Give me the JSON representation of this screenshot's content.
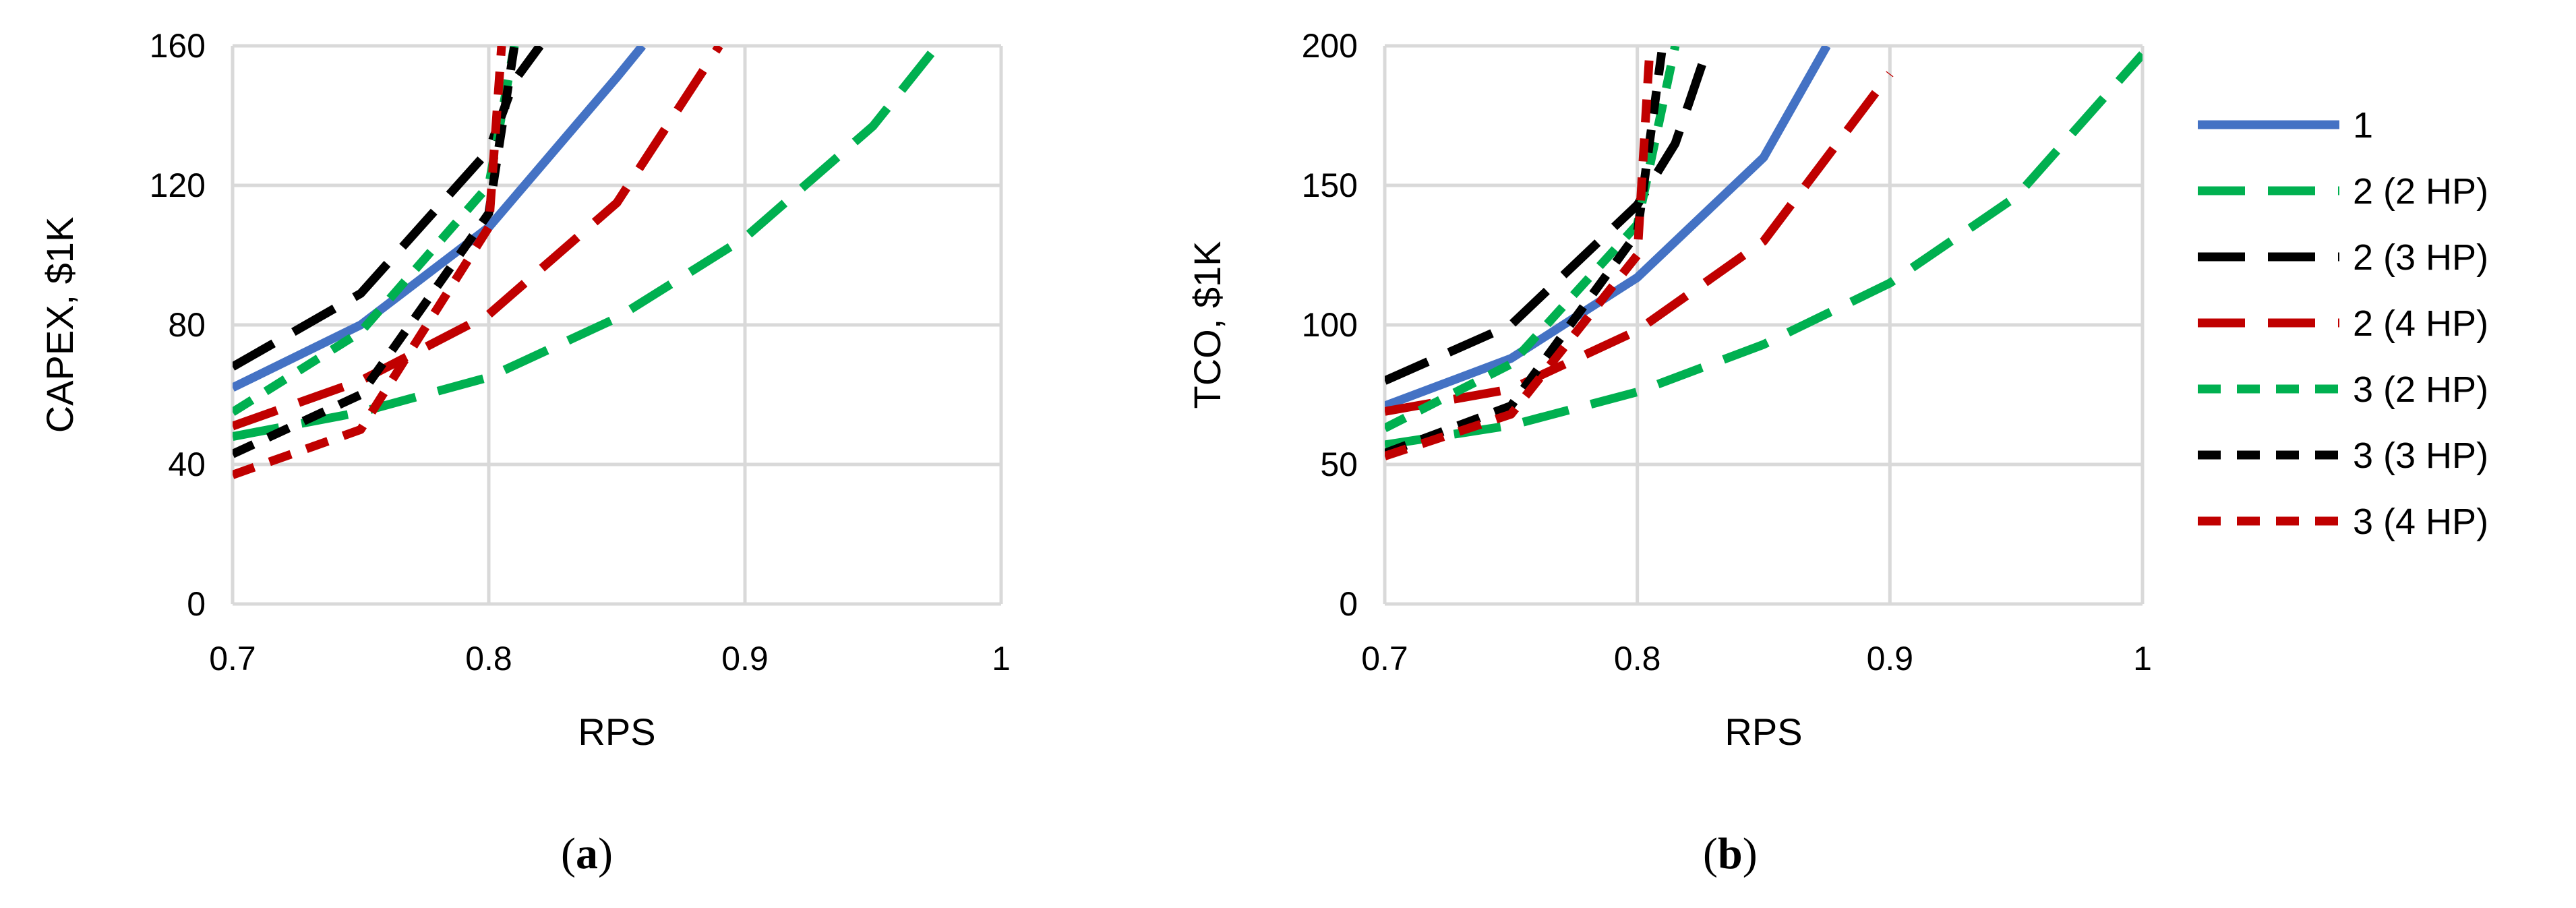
{
  "colors": {
    "blue": "#4472C4",
    "green": "#00B050",
    "black": "#000000",
    "red": "#C00000",
    "grid": "#D9D9D9"
  },
  "legend": {
    "placement": "right",
    "entries": [
      {
        "label": "1",
        "color": "#4472C4",
        "dash": "solid"
      },
      {
        "label": "2 (2 HP)",
        "color": "#00B050",
        "dash": "long-dash"
      },
      {
        "label": "2 (3 HP)",
        "color": "#000000",
        "dash": "long-dash"
      },
      {
        "label": "2 (4 HP)",
        "color": "#C00000",
        "dash": "long-dash"
      },
      {
        "label": "3 (2 HP)",
        "color": "#00B050",
        "dash": "short-dash"
      },
      {
        "label": "3 (3 HP)",
        "color": "#000000",
        "dash": "short-dash"
      },
      {
        "label": "3 (4 HP)",
        "color": "#C00000",
        "dash": "short-dash"
      }
    ]
  },
  "chart_data": [
    {
      "type": "line",
      "panel_label_open": "(",
      "panel_label_letter": "a",
      "panel_label_close": ")",
      "xlabel": "RPS",
      "ylabel": "CAPEX, $1K",
      "xlim": [
        0.7,
        1.0
      ],
      "ylim": [
        0,
        160
      ],
      "xticks": [
        "0.7",
        "0.8",
        "0.9",
        "1"
      ],
      "yticks": [
        "0",
        "40",
        "80",
        "120",
        "160"
      ],
      "grid": true,
      "series": [
        {
          "name": "1",
          "x": [
            0.7,
            0.75,
            0.8,
            0.85,
            0.86
          ],
          "y": [
            62,
            80,
            108,
            151,
            160
          ]
        },
        {
          "name": "2 (2 HP)",
          "x": [
            0.7,
            0.75,
            0.8,
            0.85,
            0.9,
            0.95,
            0.975
          ],
          "y": [
            48,
            55,
            65,
            82,
            105,
            137,
            160
          ]
        },
        {
          "name": "2 (3 HP)",
          "x": [
            0.7,
            0.75,
            0.8,
            0.81,
            0.82
          ],
          "y": [
            68,
            89,
            130,
            150,
            160
          ]
        },
        {
          "name": "2 (4 HP)",
          "x": [
            0.7,
            0.75,
            0.8,
            0.85,
            0.89
          ],
          "y": [
            51,
            64,
            83,
            115,
            160
          ]
        },
        {
          "name": "3 (2 HP)",
          "x": [
            0.7,
            0.75,
            0.8,
            0.81
          ],
          "y": [
            55,
            78,
            120,
            160
          ]
        },
        {
          "name": "3 (3 HP)",
          "x": [
            0.7,
            0.75,
            0.8,
            0.81
          ],
          "y": [
            43,
            60,
            112,
            160
          ]
        },
        {
          "name": "3 (4 HP)",
          "x": [
            0.7,
            0.75,
            0.8,
            0.805
          ],
          "y": [
            37,
            50,
            108,
            160
          ]
        }
      ]
    },
    {
      "type": "line",
      "panel_label_open": "(",
      "panel_label_letter": "b",
      "panel_label_close": ")",
      "xlabel": "RPS",
      "ylabel": "TCO, $1K",
      "xlim": [
        0.7,
        1.0
      ],
      "ylim": [
        0,
        200
      ],
      "xticks": [
        "0.7",
        "0.8",
        "0.9",
        "1"
      ],
      "yticks": [
        "0",
        "50",
        "100",
        "150",
        "200"
      ],
      "grid": true,
      "series": [
        {
          "name": "1",
          "x": [
            0.7,
            0.75,
            0.8,
            0.85,
            0.875
          ],
          "y": [
            71,
            88,
            117,
            160,
            200
          ]
        },
        {
          "name": "2 (2 HP)",
          "x": [
            0.7,
            0.75,
            0.8,
            0.85,
            0.9,
            0.95,
            1.0
          ],
          "y": [
            57,
            64,
            76,
            93,
            115,
            146,
            197
          ]
        },
        {
          "name": "2 (3 HP)",
          "x": [
            0.7,
            0.75,
            0.8,
            0.815,
            0.83
          ],
          "y": [
            80,
            100,
            143,
            165,
            205
          ]
        },
        {
          "name": "2 (4 HP)",
          "x": [
            0.7,
            0.75,
            0.8,
            0.85,
            0.9
          ],
          "y": [
            69,
            77,
            98,
            130,
            190
          ]
        },
        {
          "name": "3 (2 HP)",
          "x": [
            0.7,
            0.75,
            0.8,
            0.815
          ],
          "y": [
            63,
            86,
            136,
            200
          ]
        },
        {
          "name": "3 (3 HP)",
          "x": [
            0.7,
            0.75,
            0.8,
            0.81
          ],
          "y": [
            54,
            71,
            133,
            200
          ]
        },
        {
          "name": "3 (4 HP)",
          "x": [
            0.7,
            0.75,
            0.8,
            0.805
          ],
          "y": [
            53,
            68,
            125,
            200
          ]
        }
      ]
    }
  ]
}
